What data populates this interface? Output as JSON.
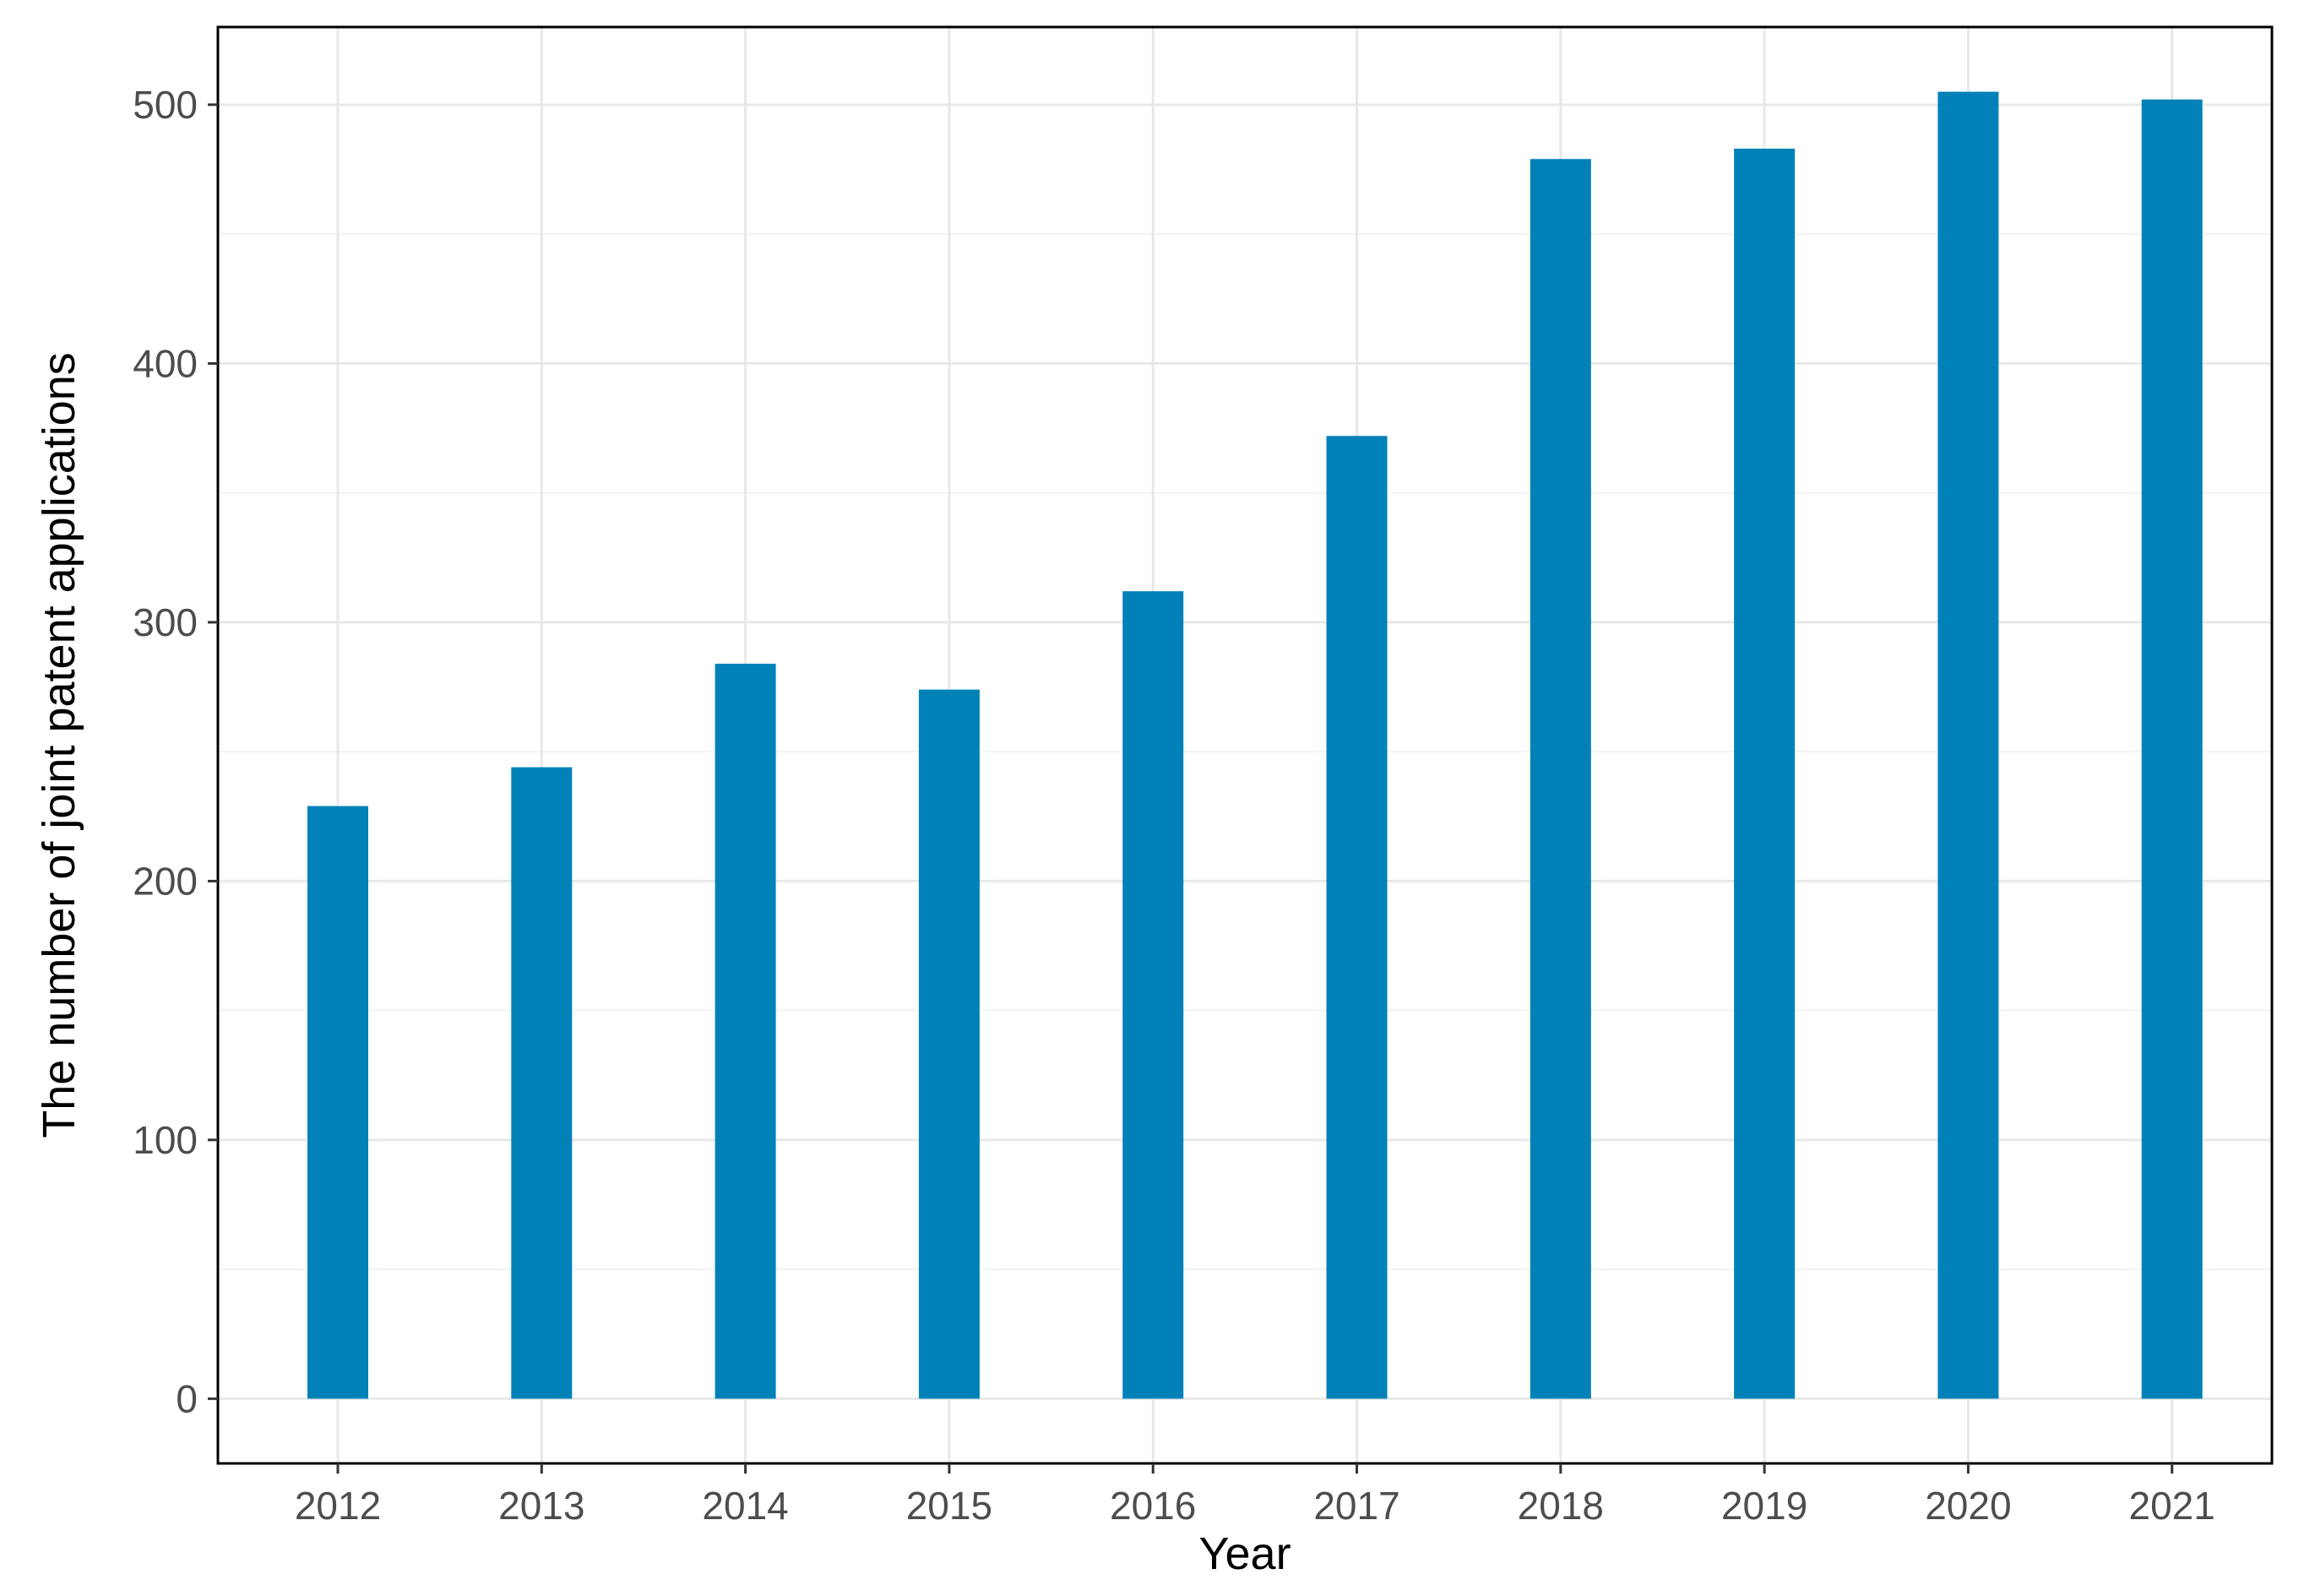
{
  "chart_data": {
    "type": "bar",
    "title": "",
    "xlabel": "Year",
    "ylabel": "The number of joint patent applications",
    "categories": [
      "2012",
      "2013",
      "2014",
      "2015",
      "2016",
      "2017",
      "2018",
      "2019",
      "2020",
      "2021"
    ],
    "values": [
      229,
      244,
      284,
      274,
      312,
      372,
      479,
      483,
      505,
      502
    ],
    "ylim": [
      -25,
      530
    ],
    "yticks": [
      0,
      100,
      200,
      300,
      400,
      500
    ],
    "grid": true,
    "legend": "none",
    "bar_color": "#0082b8"
  }
}
